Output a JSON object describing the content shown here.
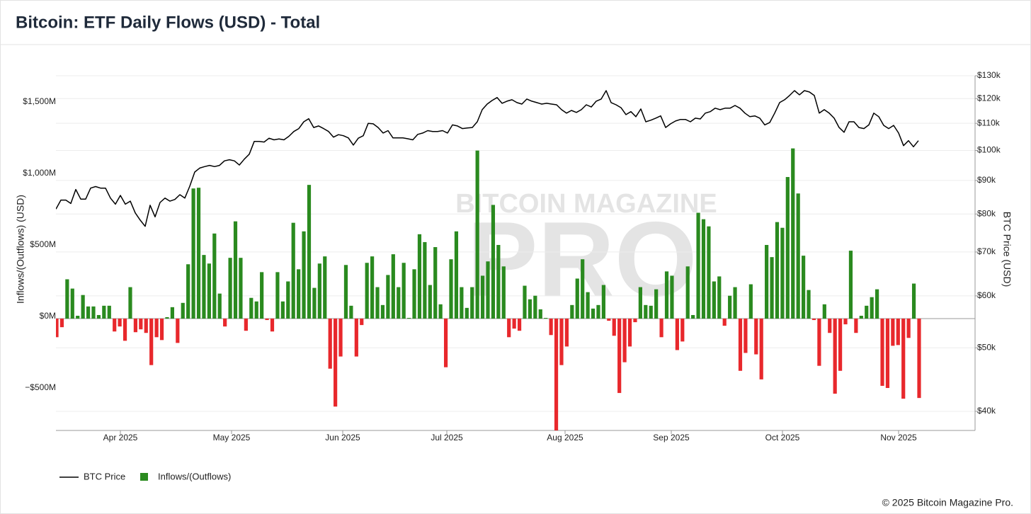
{
  "chart_data": {
    "type": "bar",
    "title": "Bitcoin: ETF Daily Flows (USD) - Total",
    "ylabel": "Inflows/(Outflows) (USD)",
    "y2label": "BTC Price (USD)",
    "watermark": {
      "top": "BITCOIN MAGAZINE",
      "main": "PRO"
    },
    "credit": "© 2025 Bitcoin Magazine Pro.",
    "xticks": [
      "Apr 2025",
      "May 2025",
      "Jun 2025",
      "Jul 2025",
      "Aug 2025",
      "Sep 2025",
      "Oct 2025",
      "Nov 2025"
    ],
    "ylim": [
      -782,
      1698
    ],
    "yticks": [
      {
        "value": -500,
        "label": "−$500M"
      },
      {
        "value": 0,
        "label": "$0M"
      },
      {
        "value": 500,
        "label": "$500M"
      },
      {
        "value": 1000,
        "label": "$1,000M"
      },
      {
        "value": 1500,
        "label": "$1,500M"
      }
    ],
    "y2lim": [
      37400,
      130000
    ],
    "y2scale": "log",
    "y2ticks": [
      {
        "value": 40000,
        "label": "$40k"
      },
      {
        "value": 50000,
        "label": "$50k"
      },
      {
        "value": 60000,
        "label": "$60k"
      },
      {
        "value": 70000,
        "label": "$70k"
      },
      {
        "value": 80000,
        "label": "$80k"
      },
      {
        "value": 90000,
        "label": "$90k"
      },
      {
        "value": 100000,
        "label": "$100k"
      },
      {
        "value": 110000,
        "label": "$110k"
      },
      {
        "value": 120000,
        "label": "$120k"
      },
      {
        "value": 130000,
        "label": "$130k"
      }
    ],
    "grid": true,
    "legend": "bottom-left",
    "series": [
      {
        "name": "BTC Price",
        "type": "line",
        "axis": "y2",
        "color": "#000000",
        "values": [
          81400,
          84000,
          84000,
          83000,
          87200,
          84300,
          84300,
          87600,
          88100,
          87600,
          87600,
          84600,
          82800,
          85400,
          82800,
          83700,
          80300,
          78300,
          76600,
          82500,
          79200,
          83300,
          84600,
          83700,
          84200,
          85600,
          84600,
          88200,
          92700,
          94000,
          94500,
          94900,
          94500,
          94900,
          96400,
          96800,
          96400,
          95000,
          97000,
          98700,
          103200,
          103200,
          103000,
          104400,
          103800,
          104100,
          103800,
          105100,
          106900,
          108000,
          110600,
          111800,
          108400,
          109000,
          108000,
          106900,
          104800,
          105700,
          105300,
          104500,
          101900,
          104400,
          105300,
          110000,
          109800,
          108400,
          106300,
          107200,
          104500,
          104500,
          104500,
          104200,
          103800,
          105800,
          106300,
          107200,
          106900,
          106900,
          107200,
          106300,
          109400,
          109000,
          108000,
          108200,
          108400,
          110600,
          115400,
          117700,
          119200,
          120400,
          118000,
          118900,
          119500,
          118300,
          117700,
          119800,
          118900,
          118300,
          117700,
          118000,
          117700,
          117400,
          115400,
          114000,
          115100,
          114300,
          115400,
          117400,
          116500,
          118900,
          119800,
          123400,
          118300,
          117400,
          116200,
          113400,
          114600,
          112600,
          115700,
          110600,
          111200,
          112000,
          112900,
          108400,
          109800,
          110900,
          111500,
          111500,
          110600,
          112000,
          111700,
          114000,
          114600,
          116000,
          115400,
          116000,
          116000,
          117100,
          116000,
          114000,
          112600,
          112900,
          112000,
          109400,
          110300,
          114000,
          118300,
          119500,
          121300,
          123400,
          121600,
          123400,
          122800,
          121300,
          114000,
          115400,
          114000,
          112000,
          108400,
          106600,
          110600,
          110600,
          108400,
          108000,
          109400,
          114000,
          112600,
          109200,
          108000,
          109200,
          106300,
          101700,
          103500,
          101300,
          103500
        ]
      },
      {
        "name": "Inflows/(Outflows)",
        "type": "bar",
        "axis": "y",
        "color": "#2a8a1f",
        "negative_color": "#e8282c",
        "values": [
          -130,
          -60,
          275,
          210,
          20,
          165,
          85,
          85,
          25,
          90,
          90,
          -90,
          -55,
          -155,
          220,
          -95,
          -75,
          -100,
          -325,
          -130,
          -150,
          10,
          80,
          -170,
          110,
          380,
          910,
          915,
          445,
          385,
          595,
          175,
          -55,
          425,
          680,
          425,
          -85,
          145,
          120,
          325,
          -10,
          -90,
          325,
          120,
          260,
          670,
          345,
          610,
          935,
          215,
          385,
          435,
          -350,
          -615,
          -265,
          375,
          90,
          -265,
          -45,
          390,
          435,
          220,
          95,
          305,
          450,
          220,
          390,
          5,
          345,
          590,
          535,
          235,
          500,
          100,
          -340,
          415,
          610,
          220,
          75,
          220,
          1175,
          300,
          400,
          795,
          515,
          365,
          -130,
          -70,
          -85,
          230,
          135,
          160,
          65,
          5,
          -115,
          -812,
          -325,
          -195,
          95,
          280,
          415,
          185,
          70,
          95,
          235,
          -15,
          -120,
          -520,
          -305,
          -195,
          -25,
          220,
          95,
          90,
          205,
          -130,
          330,
          300,
          -220,
          -160,
          365,
          25,
          740,
          695,
          645,
          260,
          295,
          -50,
          160,
          220,
          -365,
          -240,
          240,
          -250,
          -425,
          515,
          430,
          675,
          635,
          990,
          1190,
          875,
          440,
          200,
          -10,
          -330,
          100,
          -100,
          -525,
          -365,
          -40,
          475,
          -100,
          20,
          90,
          150,
          205,
          -470,
          -485,
          -190,
          -185,
          -560,
          -135,
          245,
          -555
        ]
      }
    ]
  }
}
